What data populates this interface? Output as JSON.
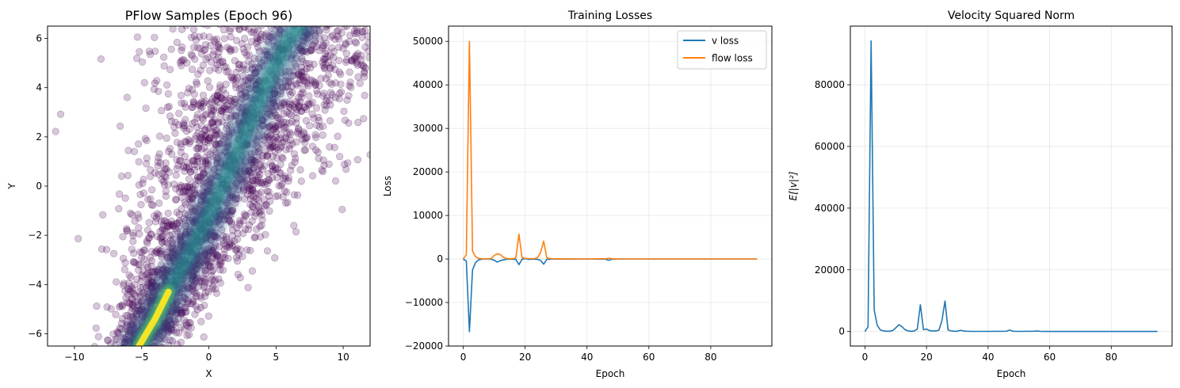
{
  "chart_data": [
    {
      "type": "scatter",
      "title": "PFlow Samples (Epoch 96)",
      "xlabel": "X",
      "ylabel": "Y",
      "xlim": [
        -12,
        12
      ],
      "ylim": [
        -6.5,
        6.5
      ],
      "xticks": [
        -10,
        -5,
        0,
        5,
        10
      ],
      "yticks": [
        -6,
        -4,
        -2,
        0,
        2,
        4,
        6
      ],
      "colormap": "viridis",
      "grid": false,
      "density_ridge": [
        [
          -5.2,
          -6.5
        ],
        [
          -4.0,
          -5.4
        ],
        [
          -3.0,
          -4.3
        ],
        [
          -1.5,
          -2.8
        ],
        [
          0.0,
          -1.2
        ],
        [
          1.5,
          0.6
        ],
        [
          3.0,
          2.5
        ],
        [
          4.5,
          4.4
        ],
        [
          6.0,
          6.0
        ],
        [
          6.8,
          6.5
        ]
      ],
      "colors": {
        "low": "#440154",
        "mid": "#31688e",
        "high": "#fde725"
      }
    },
    {
      "type": "line",
      "title": "Training Losses",
      "xlabel": "Epoch",
      "ylabel": "Loss",
      "xlim": [
        -4.75,
        99.75
      ],
      "ylim": [
        -20000,
        53500
      ],
      "xticks": [
        0,
        20,
        40,
        60,
        80
      ],
      "yticks": [
        -20000,
        -10000,
        0,
        10000,
        20000,
        30000,
        40000,
        50000
      ],
      "grid": true,
      "legend": "top-right",
      "series": [
        {
          "name": "v loss",
          "color": "#1f77b4",
          "points": [
            [
              0,
              0
            ],
            [
              1,
              -500
            ],
            [
              2,
              -16700
            ],
            [
              3,
              -2500
            ],
            [
              4,
              -800
            ],
            [
              5,
              -200
            ],
            [
              6,
              -50
            ],
            [
              7,
              -20
            ],
            [
              8,
              -20
            ],
            [
              9,
              -50
            ],
            [
              10,
              -300
            ],
            [
              11,
              -700
            ],
            [
              12,
              -400
            ],
            [
              13,
              -200
            ],
            [
              14,
              -50
            ],
            [
              15,
              -20
            ],
            [
              16,
              -50
            ],
            [
              17,
              -100
            ],
            [
              18,
              -1300
            ],
            [
              19,
              -100
            ],
            [
              20,
              100
            ],
            [
              21,
              -100
            ],
            [
              22,
              -50
            ],
            [
              23,
              -50
            ],
            [
              24,
              -100
            ],
            [
              25,
              -300
            ],
            [
              26,
              -1200
            ],
            [
              27,
              -100
            ],
            [
              28,
              -50
            ],
            [
              29,
              -30
            ],
            [
              30,
              -20
            ],
            [
              35,
              -20
            ],
            [
              40,
              -10
            ],
            [
              46,
              -50
            ],
            [
              47,
              -300
            ],
            [
              48,
              -50
            ],
            [
              50,
              -10
            ],
            [
              60,
              -10
            ],
            [
              70,
              -10
            ],
            [
              80,
              -10
            ],
            [
              90,
              -10
            ],
            [
              95,
              -10
            ]
          ]
        },
        {
          "name": "flow loss",
          "color": "#ff7f0e",
          "points": [
            [
              0,
              0
            ],
            [
              1,
              1000
            ],
            [
              2,
              50000
            ],
            [
              3,
              1800
            ],
            [
              4,
              500
            ],
            [
              5,
              150
            ],
            [
              6,
              50
            ],
            [
              7,
              30
            ],
            [
              8,
              30
            ],
            [
              9,
              100
            ],
            [
              10,
              800
            ],
            [
              11,
              1200
            ],
            [
              12,
              1000
            ],
            [
              13,
              400
            ],
            [
              14,
              100
            ],
            [
              15,
              50
            ],
            [
              16,
              80
            ],
            [
              17,
              200
            ],
            [
              18,
              5700
            ],
            [
              19,
              300
            ],
            [
              20,
              150
            ],
            [
              21,
              100
            ],
            [
              22,
              80
            ],
            [
              23,
              80
            ],
            [
              24,
              300
            ],
            [
              25,
              1500
            ],
            [
              26,
              4100
            ],
            [
              27,
              300
            ],
            [
              28,
              100
            ],
            [
              29,
              50
            ],
            [
              30,
              20
            ],
            [
              35,
              20
            ],
            [
              40,
              10
            ],
            [
              46,
              40
            ],
            [
              47,
              200
            ],
            [
              48,
              40
            ],
            [
              50,
              10
            ],
            [
              60,
              10
            ],
            [
              70,
              10
            ],
            [
              80,
              10
            ],
            [
              90,
              10
            ],
            [
              95,
              10
            ]
          ]
        }
      ]
    },
    {
      "type": "line",
      "title": "Velocity Squared Norm",
      "xlabel": "Epoch",
      "ylabel": "E[|v|²]",
      "xlim": [
        -4.75,
        99.75
      ],
      "ylim": [
        -4700,
        99000
      ],
      "xticks": [
        0,
        20,
        40,
        60,
        80
      ],
      "yticks": [
        0,
        20000,
        40000,
        60000,
        80000
      ],
      "grid": true,
      "series": [
        {
          "color": "#1f77b4",
          "points": [
            [
              0,
              0
            ],
            [
              1,
              1500
            ],
            [
              2,
              94200
            ],
            [
              3,
              7000
            ],
            [
              4,
              2000
            ],
            [
              5,
              500
            ],
            [
              6,
              200
            ],
            [
              7,
              100
            ],
            [
              8,
              100
            ],
            [
              9,
              300
            ],
            [
              10,
              1200
            ],
            [
              11,
              2200
            ],
            [
              12,
              1600
            ],
            [
              13,
              600
            ],
            [
              14,
              200
            ],
            [
              15,
              100
            ],
            [
              16,
              150
            ],
            [
              17,
              800
            ],
            [
              18,
              8700
            ],
            [
              19,
              600
            ],
            [
              20,
              800
            ],
            [
              21,
              300
            ],
            [
              22,
              200
            ],
            [
              23,
              200
            ],
            [
              24,
              400
            ],
            [
              25,
              3500
            ],
            [
              26,
              9900
            ],
            [
              27,
              500
            ],
            [
              28,
              200
            ],
            [
              29,
              100
            ],
            [
              30,
              100
            ],
            [
              31,
              400
            ],
            [
              32,
              200
            ],
            [
              33,
              100
            ],
            [
              35,
              50
            ],
            [
              40,
              50
            ],
            [
              46,
              100
            ],
            [
              47,
              500
            ],
            [
              48,
              100
            ],
            [
              50,
              50
            ],
            [
              55,
              100
            ],
            [
              56,
              200
            ],
            [
              57,
              50
            ],
            [
              60,
              30
            ],
            [
              70,
              30
            ],
            [
              80,
              30
            ],
            [
              90,
              30
            ],
            [
              95,
              30
            ]
          ]
        }
      ]
    }
  ]
}
